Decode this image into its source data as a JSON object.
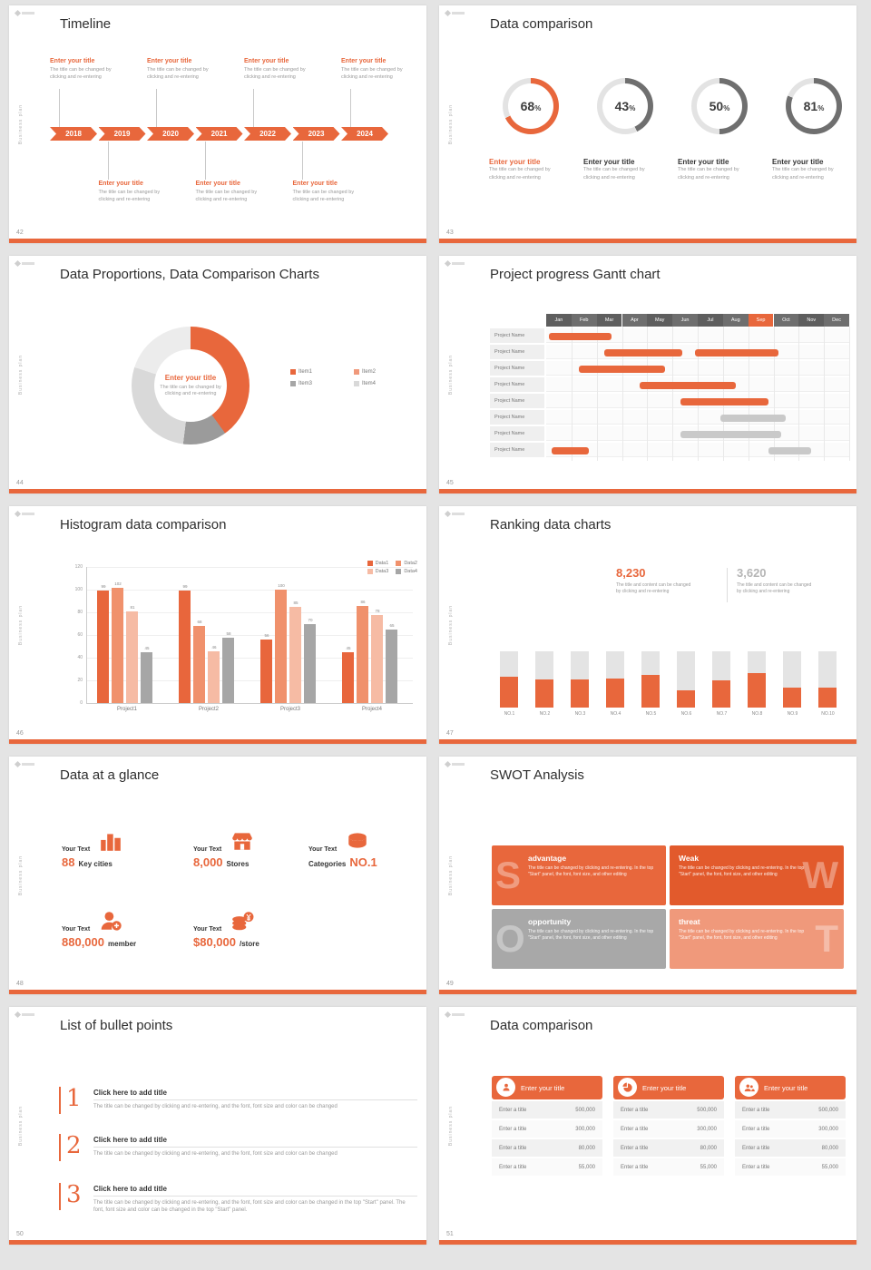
{
  "common": {
    "vertical_text": "Business plan"
  },
  "slides": {
    "s42": {
      "number": "42",
      "title": "Timeline",
      "years": [
        "2018",
        "2019",
        "2020",
        "2021",
        "2022",
        "2023",
        "2024"
      ],
      "entry_title": "Enter your title",
      "entry_caption_l1": "The title can be changed by",
      "entry_caption_l2": "clicking and re-entering",
      "top_positions": [
        0,
        2,
        4,
        6
      ],
      "bottom_positions": [
        1,
        3,
        5
      ]
    },
    "s43": {
      "number": "43",
      "title": "Data comparison",
      "item_title": "Enter your title",
      "percent_sign": "%",
      "caption_l1": "The title can be changed by",
      "caption_l2": "clicking and re-entering"
    },
    "s44": {
      "number": "44",
      "title": "Data Proportions, Data Comparison Charts",
      "center_title": "Enter your title",
      "caption_l1": "The title can be changed by",
      "caption_l2": "clicking and re-entering"
    },
    "s45": {
      "number": "45",
      "title": "Project progress Gantt chart"
    },
    "s46": {
      "number": "46",
      "title": "Histogram data comparison"
    },
    "s47": {
      "number": "47",
      "title": "Ranking data charts",
      "stats": [
        {
          "value": "8,230",
          "caption_l1": "The title and content can be changed",
          "caption_l2": "by clicking and re-entering"
        },
        {
          "value": "3,620",
          "caption_l1": "The title and content can be changed",
          "caption_l2": "by clicking and re-entering"
        }
      ]
    },
    "s48": {
      "number": "48",
      "title": "Data at a glance",
      "items": [
        {
          "label": "Your Text",
          "value": "88",
          "unit": "Key cities"
        },
        {
          "label": "Your Text",
          "value": "8,000",
          "unit": "Stores"
        },
        {
          "label": "Your Text",
          "value": "NO.1",
          "unit": "Categories"
        },
        {
          "label": "Your Text",
          "value": "880,000",
          "unit": "member"
        },
        {
          "label": "Your Text",
          "value": "$80,000",
          "unit": "/store"
        }
      ]
    },
    "s49": {
      "number": "49",
      "title": "SWOT Analysis",
      "quads": [
        {
          "letter": "S",
          "title": "advantage",
          "caption": "The title can be changed by clicking and re-entering. In the top \"Start\" panel, the font, font size, and other editing",
          "color": "#E8673C",
          "side": "left"
        },
        {
          "letter": "W",
          "title": "Weak",
          "caption": "The title can be changed by clicking and re-entering. In the top \"Start\" panel, the font, font size, and other editing",
          "color": "#E25A2C",
          "side": "right"
        },
        {
          "letter": "O",
          "title": "opportunity",
          "caption": "The title can be changed by clicking and re-entering. In the top \"Start\" panel, the font, font size, and other editing",
          "color": "#A8A8A8",
          "side": "left"
        },
        {
          "letter": "T",
          "title": "threat",
          "caption": "The title can be changed by clicking and re-entering. In the top \"Start\" panel, the font, font size, and other editing",
          "color": "#F0997B",
          "side": "right"
        }
      ]
    },
    "s50": {
      "number": "50",
      "title": "List of bullet points",
      "items": [
        {
          "num": "1",
          "title": "Click here to add title",
          "caption": "The title can be changed by clicking and re-entering, and the font, font size and color can be changed"
        },
        {
          "num": "2",
          "title": "Click here to add title",
          "caption": "The title can be changed by clicking and re-entering, and the font, font size and color can be changed"
        },
        {
          "num": "3",
          "title": "Click here to add title",
          "caption": "The title can be changed by clicking and re-entering, and the font, font size and color can be changed in the top \"Start\" panel. The font, font size and color can be changed in the top \"Start\" panel."
        }
      ]
    },
    "s51": {
      "number": "51",
      "title": "Data comparison",
      "cards": [
        {
          "header": "Enter your title",
          "icon": "badge-icon",
          "rows": [
            [
              "Enter a title",
              "500,000"
            ],
            [
              "Enter a title",
              "300,000"
            ],
            [
              "Enter a title",
              "80,000"
            ],
            [
              "Enter a title",
              "55,000"
            ]
          ]
        },
        {
          "header": "Enter your title",
          "icon": "pie-icon",
          "rows": [
            [
              "Enter a title",
              "500,000"
            ],
            [
              "Enter a title",
              "300,000"
            ],
            [
              "Enter a title",
              "80,000"
            ],
            [
              "Enter a title",
              "55,000"
            ]
          ]
        },
        {
          "header": "Enter your title",
          "icon": "people-icon",
          "rows": [
            [
              "Enter a title",
              "500,000"
            ],
            [
              "Enter a title",
              "300,000"
            ],
            [
              "Enter a title",
              "80,000"
            ],
            [
              "Enter a title",
              "55,000"
            ]
          ]
        }
      ]
    }
  },
  "chart_data": [
    {
      "type": "donut-progress",
      "slide": "43",
      "title": "Data comparison",
      "values": [
        68,
        43,
        50,
        81
      ],
      "unit": "%",
      "accent_color": "#E8673C",
      "other_color": "#6F6F6F",
      "track_color": "#E3E3E3"
    },
    {
      "type": "pie",
      "slide": "44",
      "title": "Data Proportions, Data Comparison Charts",
      "labels": [
        "Item1",
        "Item2",
        "Item3",
        "Item4"
      ],
      "values": [
        40,
        12,
        28,
        20
      ],
      "colors": [
        "#E8673C",
        "#9B9B9B",
        "#D9D9D9",
        "#ECECEC"
      ],
      "legend_colors": [
        "#E8673C",
        "#F0997B",
        "#A6A6A6",
        "#D9D9D9"
      ],
      "hole_text": "Enter your title"
    },
    {
      "type": "gantt",
      "slide": "45",
      "title": "Project progress Gantt chart",
      "months": [
        "Jan",
        "Feb",
        "Mar",
        "Apr",
        "May",
        "Jun",
        "Jul",
        "Aug",
        "Sep",
        "Oct",
        "Nov",
        "Dec"
      ],
      "highlight_month": "Sep",
      "row_label": "Project Name",
      "row_count": 8,
      "bars": [
        {
          "row": 0,
          "start": 0.1,
          "end": 2.6,
          "color": "orange"
        },
        {
          "row": 1,
          "start": 2.3,
          "end": 5.4,
          "color": "orange"
        },
        {
          "row": 1,
          "start": 5.9,
          "end": 9.2,
          "color": "orange"
        },
        {
          "row": 2,
          "start": 1.3,
          "end": 4.7,
          "color": "orange"
        },
        {
          "row": 3,
          "start": 3.7,
          "end": 7.5,
          "color": "orange"
        },
        {
          "row": 4,
          "start": 5.3,
          "end": 8.8,
          "color": "orange"
        },
        {
          "row": 5,
          "start": 6.9,
          "end": 9.5,
          "color": "gray"
        },
        {
          "row": 6,
          "start": 5.3,
          "end": 9.3,
          "color": "gray"
        },
        {
          "row": 7,
          "start": 0.2,
          "end": 1.7,
          "color": "orange"
        },
        {
          "row": 7,
          "start": 8.8,
          "end": 10.5,
          "color": "gray"
        }
      ]
    },
    {
      "type": "bar",
      "slide": "46",
      "title": "Histogram data comparison",
      "categories": [
        "Project1",
        "Project2",
        "Project3",
        "Project4"
      ],
      "series": [
        {
          "name": "Data1",
          "color": "#E8663C",
          "values": [
            99,
            99,
            56,
            45
          ]
        },
        {
          "name": "Data2",
          "color": "#F0916C",
          "values": [
            102,
            68,
            100,
            86
          ]
        },
        {
          "name": "Data3",
          "color": "#F6BBA4",
          "values": [
            81,
            46,
            85,
            78
          ]
        },
        {
          "name": "Data4",
          "color": "#A6A6A6",
          "values": [
            45,
            58,
            70,
            65
          ]
        }
      ],
      "y_ticks": [
        0,
        20,
        40,
        60,
        80,
        100,
        120
      ],
      "y_max": 120
    },
    {
      "type": "bar",
      "subtype": "ranking",
      "slide": "47",
      "title": "Ranking data charts",
      "categories": [
        "NO.1",
        "NO.2",
        "NO.3",
        "NO.4",
        "NO.5",
        "NO.6",
        "NO.7",
        "NO.8",
        "NO.9",
        "NO.10"
      ],
      "values": [
        55,
        50,
        50,
        52,
        58,
        30,
        48,
        62,
        35,
        36
      ],
      "y_max": 100,
      "bar_color": "#E8673C",
      "track_color": "#E4E4E4"
    }
  ]
}
